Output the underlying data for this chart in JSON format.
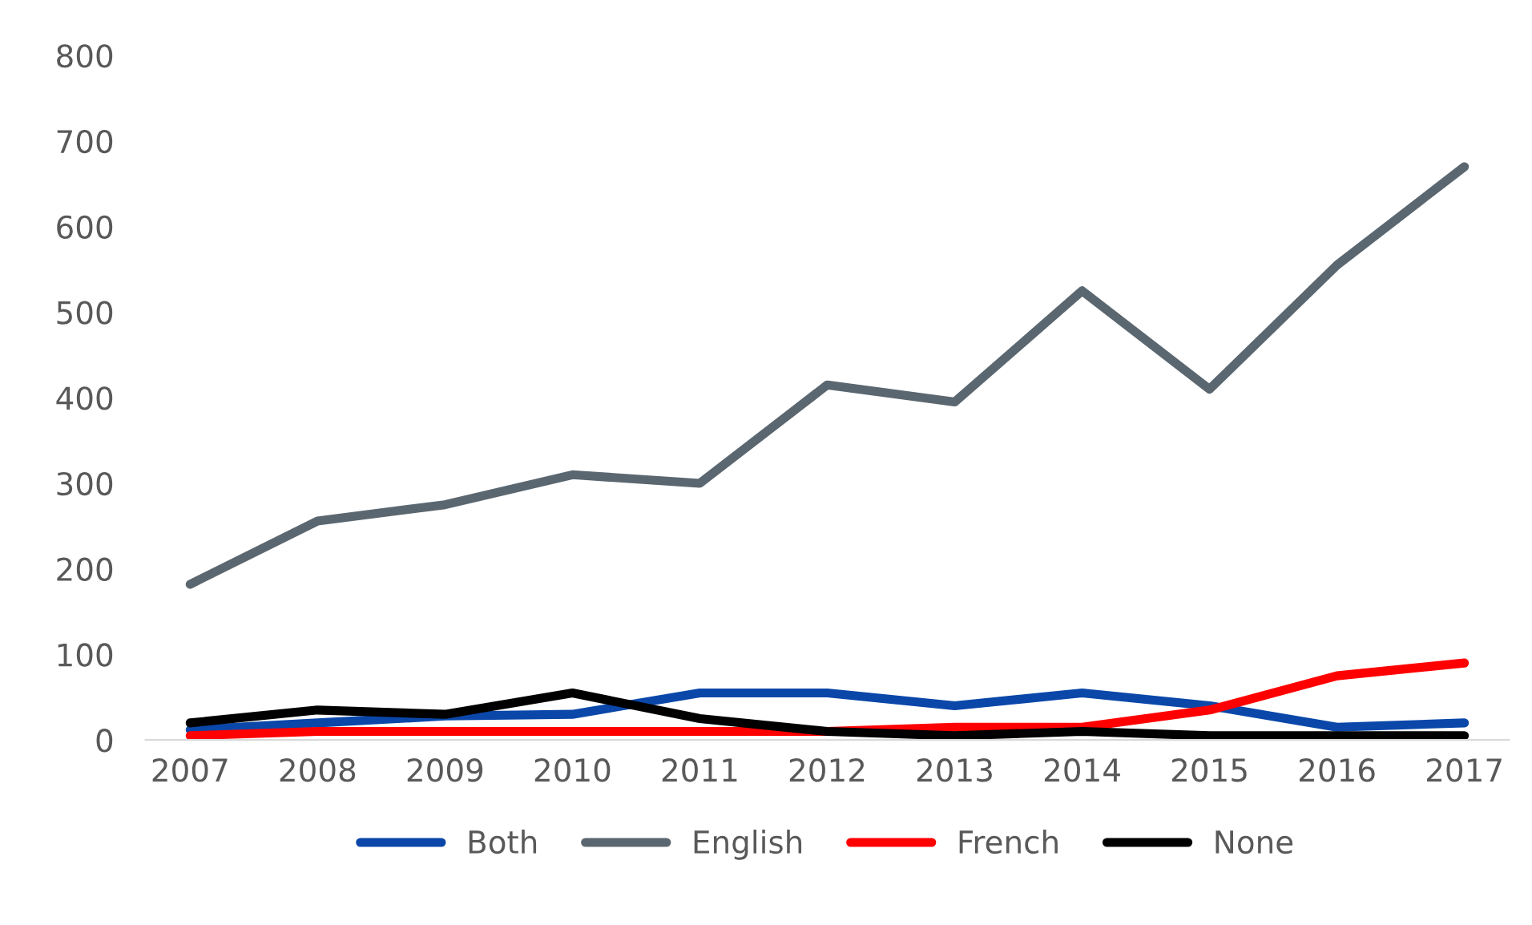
{
  "chart_data": {
    "type": "line",
    "categories": [
      "2007",
      "2008",
      "2009",
      "2010",
      "2011",
      "2012",
      "2013",
      "2014",
      "2015",
      "2016",
      "2017"
    ],
    "series": [
      {
        "name": "Both",
        "color": "#0a47a9",
        "values": [
          12,
          20,
          28,
          30,
          55,
          55,
          40,
          55,
          40,
          15,
          20
        ]
      },
      {
        "name": "English",
        "color": "#5b6770",
        "values": [
          182,
          256,
          275,
          310,
          300,
          415,
          395,
          525,
          410,
          555,
          670
        ]
      },
      {
        "name": "French",
        "color": "#ff0000",
        "values": [
          5,
          10,
          10,
          10,
          10,
          10,
          15,
          15,
          35,
          75,
          90
        ]
      },
      {
        "name": "None",
        "color": "#000000",
        "values": [
          20,
          35,
          30,
          55,
          25,
          10,
          5,
          10,
          5,
          5,
          5
        ]
      }
    ],
    "ylim": [
      0,
      800
    ],
    "yticks": [
      0,
      100,
      200,
      300,
      400,
      500,
      600,
      700,
      800
    ],
    "grid": false,
    "legend": "bottom",
    "marker": "none",
    "line_style": "solid"
  }
}
